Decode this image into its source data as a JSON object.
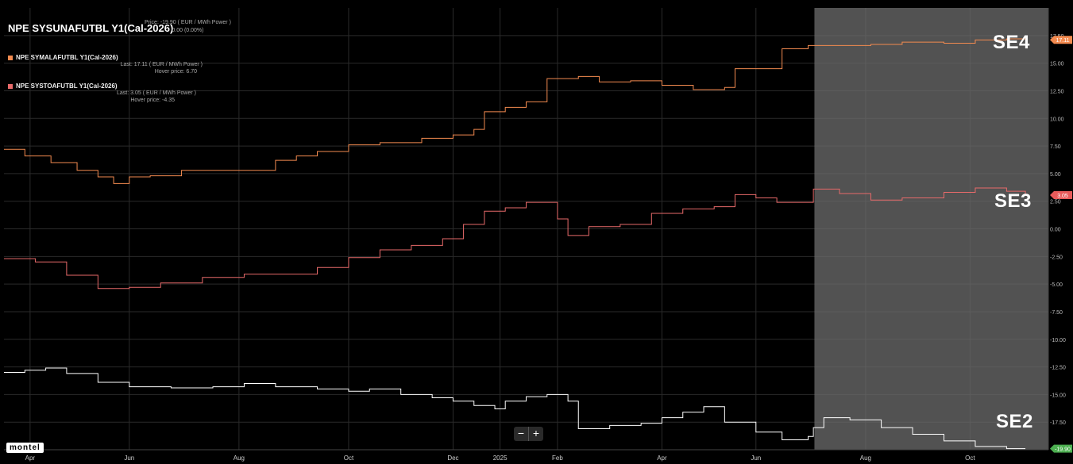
{
  "legend": {
    "title": "NPE SYSUNAFUTBL Y1(Cal-2026)",
    "price_line1": "Price: -19.90 ( EUR / MWh Power )",
    "price_line2": "0.00 (0.00%)",
    "series": [
      {
        "name": "NPE SYMALAFUTBL Y1(Cal-2026)",
        "last": "Last: 17.11 ( EUR / MWh Power )",
        "hover": "Hover price: 6.70",
        "color": "#f28a4f"
      },
      {
        "name": "NPE SYSTOAFUTBL Y1(Cal-2026)",
        "last": "Last: 3.05 ( EUR / MWh Power )",
        "hover": "Hover price: -4.35",
        "color": "#e86a6a"
      }
    ]
  },
  "zones": {
    "se4": "SE4",
    "se3": "SE3",
    "se2": "SE2"
  },
  "logo": "montel",
  "zoom": {
    "minus": "−",
    "plus": "+"
  },
  "chart_data": {
    "type": "line",
    "ylim": [
      -20,
      20
    ],
    "y_ticks": [
      "17.50",
      "15.00",
      "12.50",
      "10.00",
      "7.50",
      "5.00",
      "2.50",
      "0.00",
      "-2.50",
      "-5.00",
      "-7.50",
      "-10.00",
      "-12.50",
      "-15.00",
      "-17.50"
    ],
    "x_ticks": [
      "Apr",
      "Jun",
      "Aug",
      "Oct",
      "Dec",
      "2025",
      "Feb",
      "Apr",
      "Jun",
      "Aug",
      "Oct"
    ],
    "x_tick_t": [
      0.025,
      0.12,
      0.225,
      0.33,
      0.43,
      0.475,
      0.53,
      0.63,
      0.72,
      0.825,
      0.925
    ],
    "shaded_from_t": 0.776,
    "last_badges": [
      {
        "value": "17.11",
        "color": "#f28a4f"
      },
      {
        "value": "3.05",
        "color": "#e85a5a"
      },
      {
        "value": "-19.90",
        "color": "#4caf50"
      }
    ],
    "series": [
      {
        "color": "#f28a4f",
        "points": [
          [
            0,
            7.2
          ],
          [
            0.02,
            6.6
          ],
          [
            0.045,
            6.0
          ],
          [
            0.07,
            5.3
          ],
          [
            0.09,
            4.7
          ],
          [
            0.105,
            4.1
          ],
          [
            0.12,
            4.7
          ],
          [
            0.14,
            4.8
          ],
          [
            0.17,
            5.3
          ],
          [
            0.2,
            5.3
          ],
          [
            0.24,
            5.3
          ],
          [
            0.26,
            6.2
          ],
          [
            0.28,
            6.6
          ],
          [
            0.3,
            7.0
          ],
          [
            0.33,
            7.6
          ],
          [
            0.36,
            7.8
          ],
          [
            0.4,
            8.2
          ],
          [
            0.43,
            8.5
          ],
          [
            0.45,
            9.0
          ],
          [
            0.46,
            10.6
          ],
          [
            0.48,
            11.0
          ],
          [
            0.5,
            11.5
          ],
          [
            0.52,
            13.6
          ],
          [
            0.55,
            13.8
          ],
          [
            0.57,
            13.3
          ],
          [
            0.6,
            13.4
          ],
          [
            0.63,
            13.0
          ],
          [
            0.66,
            12.6
          ],
          [
            0.69,
            12.8
          ],
          [
            0.7,
            14.5
          ],
          [
            0.73,
            14.5
          ],
          [
            0.745,
            16.3
          ],
          [
            0.77,
            16.6
          ],
          [
            0.8,
            16.6
          ],
          [
            0.83,
            16.7
          ],
          [
            0.86,
            16.9
          ],
          [
            0.9,
            16.8
          ],
          [
            0.93,
            17.1
          ],
          [
            0.96,
            17.2
          ],
          [
            0.978,
            17.11
          ]
        ]
      },
      {
        "color": "#e86a6a",
        "points": [
          [
            0,
            -2.7
          ],
          [
            0.03,
            -3.0
          ],
          [
            0.06,
            -4.2
          ],
          [
            0.09,
            -5.4
          ],
          [
            0.12,
            -5.3
          ],
          [
            0.15,
            -4.9
          ],
          [
            0.19,
            -4.4
          ],
          [
            0.23,
            -4.1
          ],
          [
            0.27,
            -4.1
          ],
          [
            0.3,
            -3.5
          ],
          [
            0.33,
            -2.6
          ],
          [
            0.36,
            -1.9
          ],
          [
            0.39,
            -1.5
          ],
          [
            0.42,
            -0.9
          ],
          [
            0.44,
            0.4
          ],
          [
            0.46,
            1.6
          ],
          [
            0.48,
            1.9
          ],
          [
            0.5,
            2.4
          ],
          [
            0.52,
            2.4
          ],
          [
            0.53,
            0.9
          ],
          [
            0.54,
            -0.6
          ],
          [
            0.56,
            0.2
          ],
          [
            0.59,
            0.4
          ],
          [
            0.62,
            1.4
          ],
          [
            0.65,
            1.8
          ],
          [
            0.68,
            2.0
          ],
          [
            0.7,
            3.1
          ],
          [
            0.72,
            2.8
          ],
          [
            0.74,
            2.4
          ],
          [
            0.775,
            3.6
          ],
          [
            0.8,
            3.2
          ],
          [
            0.83,
            2.6
          ],
          [
            0.86,
            2.8
          ],
          [
            0.9,
            3.3
          ],
          [
            0.93,
            3.7
          ],
          [
            0.96,
            3.4
          ],
          [
            0.978,
            3.05
          ]
        ]
      },
      {
        "color": "#ffffff",
        "points": [
          [
            0,
            -13.0
          ],
          [
            0.02,
            -12.8
          ],
          [
            0.04,
            -12.6
          ],
          [
            0.06,
            -13.1
          ],
          [
            0.09,
            -13.9
          ],
          [
            0.12,
            -14.3
          ],
          [
            0.16,
            -14.4
          ],
          [
            0.2,
            -14.3
          ],
          [
            0.23,
            -14.0
          ],
          [
            0.26,
            -14.3
          ],
          [
            0.3,
            -14.5
          ],
          [
            0.33,
            -14.7
          ],
          [
            0.35,
            -14.5
          ],
          [
            0.38,
            -15.0
          ],
          [
            0.41,
            -15.3
          ],
          [
            0.43,
            -15.6
          ],
          [
            0.45,
            -16.0
          ],
          [
            0.47,
            -16.3
          ],
          [
            0.48,
            -15.6
          ],
          [
            0.5,
            -15.2
          ],
          [
            0.52,
            -15.0
          ],
          [
            0.54,
            -15.6
          ],
          [
            0.55,
            -18.1
          ],
          [
            0.58,
            -17.8
          ],
          [
            0.61,
            -17.6
          ],
          [
            0.63,
            -17.1
          ],
          [
            0.65,
            -16.6
          ],
          [
            0.67,
            -16.1
          ],
          [
            0.69,
            -17.5
          ],
          [
            0.72,
            -18.4
          ],
          [
            0.745,
            -19.1
          ],
          [
            0.77,
            -18.8
          ],
          [
            0.775,
            -18.0
          ],
          [
            0.785,
            -17.1
          ],
          [
            0.81,
            -17.3
          ],
          [
            0.84,
            -18.0
          ],
          [
            0.87,
            -18.6
          ],
          [
            0.9,
            -19.2
          ],
          [
            0.93,
            -19.7
          ],
          [
            0.96,
            -19.9
          ],
          [
            0.978,
            -19.9
          ]
        ]
      }
    ]
  }
}
